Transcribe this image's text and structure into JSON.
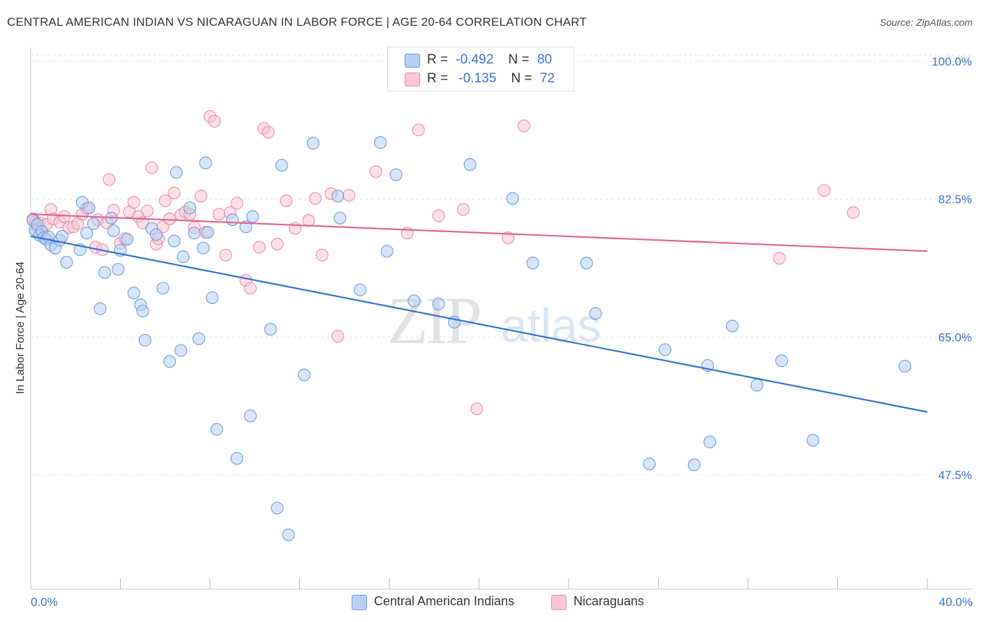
{
  "title": "CENTRAL AMERICAN INDIAN VS NICARAGUAN IN LABOR FORCE | AGE 20-64 CORRELATION CHART",
  "source": "Source: ZipAtlas.com",
  "legend_top": {
    "rows": [
      {
        "r_label": "R =",
        "r_value": "-0.492",
        "n_label": "N =",
        "n_value": "80"
      },
      {
        "r_label": "R =",
        "r_value": "-0.135",
        "n_label": "N =",
        "n_value": "72"
      }
    ]
  },
  "legend_bottom": {
    "items": [
      {
        "label": "Central American Indians"
      },
      {
        "label": "Nicaraguans"
      }
    ]
  },
  "watermark": {
    "zip": "ZIP",
    "atlas": "atlas"
  },
  "colors": {
    "blue_fill": "#b7cff2",
    "blue_stroke": "#6f9ad8",
    "blue_line": "#2f72d0",
    "pink_fill": "#f8c6d6",
    "pink_stroke": "#e98aab",
    "pink_line": "#e0628e",
    "axis_text": "#3a72c8",
    "grid": "#e3e3e3"
  },
  "chart_data": {
    "type": "scatter",
    "title": "CENTRAL AMERICAN INDIAN VS NICARAGUAN IN LABOR FORCE | AGE 20-64 CORRELATION CHART",
    "xlabel": "",
    "ylabel": "In Labor Force | Age 20-64",
    "xlim": [
      0,
      40
    ],
    "ylim": [
      33,
      101.5
    ],
    "x_tick_labels": [
      "0.0%",
      "40.0%"
    ],
    "y_ticks": [
      47.5,
      65.0,
      82.5,
      100.0
    ],
    "y_tick_labels": [
      "47.5%",
      "65.0%",
      "82.5%",
      "100.0%"
    ],
    "grid": true,
    "legend_position": "bottom",
    "series": [
      {
        "name": "Central American Indians",
        "color": "#6f9ad8",
        "trend": {
          "x": [
            0,
            40
          ],
          "y": [
            77.8,
            55.5
          ]
        },
        "points": [
          [
            0.1,
            79.8
          ],
          [
            0.2,
            78.6
          ],
          [
            0.3,
            79.3
          ],
          [
            0.4,
            77.9
          ],
          [
            0.5,
            78.4
          ],
          [
            0.6,
            77.6
          ],
          [
            0.7,
            77.4
          ],
          [
            0.8,
            77.7
          ],
          [
            0.9,
            76.7
          ],
          [
            1.1,
            76.3
          ],
          [
            1.3,
            77.3
          ],
          [
            1.4,
            77.8
          ],
          [
            1.6,
            74.5
          ],
          [
            2.2,
            76.1
          ],
          [
            2.3,
            82.1
          ],
          [
            2.5,
            78.2
          ],
          [
            2.6,
            81.4
          ],
          [
            2.8,
            79.4
          ],
          [
            3.1,
            68.6
          ],
          [
            3.3,
            73.2
          ],
          [
            3.6,
            80.1
          ],
          [
            3.7,
            78.5
          ],
          [
            3.9,
            73.6
          ],
          [
            4.0,
            76.0
          ],
          [
            4.3,
            77.4
          ],
          [
            4.6,
            70.6
          ],
          [
            4.9,
            69.1
          ],
          [
            5.0,
            68.3
          ],
          [
            5.1,
            64.6
          ],
          [
            5.4,
            78.8
          ],
          [
            5.6,
            78.0
          ],
          [
            5.9,
            71.2
          ],
          [
            6.2,
            61.9
          ],
          [
            6.4,
            77.2
          ],
          [
            6.5,
            85.9
          ],
          [
            6.7,
            63.3
          ],
          [
            6.8,
            75.2
          ],
          [
            7.1,
            81.4
          ],
          [
            7.3,
            78.2
          ],
          [
            7.5,
            64.8
          ],
          [
            7.7,
            76.3
          ],
          [
            7.8,
            87.1
          ],
          [
            7.9,
            78.3
          ],
          [
            8.1,
            70.0
          ],
          [
            8.3,
            53.3
          ],
          [
            9.0,
            79.9
          ],
          [
            9.2,
            49.6
          ],
          [
            9.6,
            79.0
          ],
          [
            9.8,
            55.0
          ],
          [
            9.9,
            80.3
          ],
          [
            10.7,
            66.0
          ],
          [
            11.0,
            43.3
          ],
          [
            11.2,
            86.8
          ],
          [
            11.5,
            39.9
          ],
          [
            12.2,
            60.2
          ],
          [
            12.6,
            89.6
          ],
          [
            13.7,
            82.9
          ],
          [
            13.8,
            80.1
          ],
          [
            14.7,
            71.0
          ],
          [
            15.6,
            89.7
          ],
          [
            15.9,
            75.9
          ],
          [
            16.3,
            85.6
          ],
          [
            17.1,
            69.6
          ],
          [
            18.2,
            69.2
          ],
          [
            18.9,
            66.9
          ],
          [
            19.6,
            86.9
          ],
          [
            21.5,
            82.6
          ],
          [
            22.4,
            74.4
          ],
          [
            24.8,
            74.4
          ],
          [
            25.2,
            68.0
          ],
          [
            27.6,
            48.9
          ],
          [
            28.3,
            63.4
          ],
          [
            29.6,
            48.8
          ],
          [
            30.2,
            61.4
          ],
          [
            30.3,
            51.7
          ],
          [
            31.3,
            66.4
          ],
          [
            32.4,
            58.9
          ],
          [
            33.5,
            62.0
          ],
          [
            34.9,
            51.9
          ],
          [
            39.0,
            61.3
          ]
        ]
      },
      {
        "name": "Nicaraguans",
        "color": "#e98aab",
        "trend": {
          "x": [
            0,
            40
          ],
          "y": [
            80.6,
            75.9
          ]
        },
        "points": [
          [
            0.1,
            80.0
          ],
          [
            0.2,
            79.6
          ],
          [
            0.3,
            79.0
          ],
          [
            0.4,
            79.5
          ],
          [
            0.5,
            78.4
          ],
          [
            0.7,
            79.3
          ],
          [
            0.9,
            81.2
          ],
          [
            1.0,
            80.0
          ],
          [
            1.3,
            79.6
          ],
          [
            1.5,
            80.3
          ],
          [
            1.7,
            78.9
          ],
          [
            1.9,
            79.0
          ],
          [
            2.1,
            79.4
          ],
          [
            2.3,
            80.6
          ],
          [
            2.5,
            81.3
          ],
          [
            2.9,
            76.4
          ],
          [
            3.0,
            79.9
          ],
          [
            3.2,
            76.1
          ],
          [
            3.4,
            79.5
          ],
          [
            3.5,
            85.0
          ],
          [
            3.7,
            81.1
          ],
          [
            4.0,
            76.9
          ],
          [
            4.2,
            77.5
          ],
          [
            4.4,
            80.9
          ],
          [
            4.6,
            82.1
          ],
          [
            4.8,
            80.3
          ],
          [
            5.0,
            79.5
          ],
          [
            5.2,
            81.0
          ],
          [
            5.4,
            86.5
          ],
          [
            5.6,
            76.8
          ],
          [
            5.7,
            77.5
          ],
          [
            5.9,
            79.0
          ],
          [
            6.0,
            82.3
          ],
          [
            6.2,
            80.0
          ],
          [
            6.4,
            83.3
          ],
          [
            6.7,
            80.5
          ],
          [
            6.9,
            80.9
          ],
          [
            7.1,
            80.6
          ],
          [
            7.3,
            78.9
          ],
          [
            7.6,
            82.9
          ],
          [
            7.8,
            78.3
          ],
          [
            8.0,
            93.0
          ],
          [
            8.2,
            92.4
          ],
          [
            8.4,
            80.6
          ],
          [
            8.7,
            75.4
          ],
          [
            8.9,
            80.8
          ],
          [
            9.2,
            82.0
          ],
          [
            9.6,
            72.2
          ],
          [
            9.8,
            71.2
          ],
          [
            10.2,
            76.4
          ],
          [
            10.4,
            91.5
          ],
          [
            10.6,
            91.0
          ],
          [
            11.0,
            76.8
          ],
          [
            11.4,
            82.3
          ],
          [
            11.8,
            78.8
          ],
          [
            12.4,
            79.8
          ],
          [
            12.7,
            82.6
          ],
          [
            13.0,
            75.4
          ],
          [
            13.4,
            83.2
          ],
          [
            13.7,
            65.1
          ],
          [
            14.2,
            83.0
          ],
          [
            15.4,
            86.0
          ],
          [
            16.8,
            78.2
          ],
          [
            17.3,
            91.3
          ],
          [
            18.2,
            80.4
          ],
          [
            19.3,
            81.2
          ],
          [
            19.9,
            55.9
          ],
          [
            21.3,
            77.6
          ],
          [
            22.0,
            91.8
          ],
          [
            33.4,
            75.0
          ],
          [
            35.4,
            83.6
          ],
          [
            36.7,
            80.8
          ]
        ]
      }
    ]
  }
}
